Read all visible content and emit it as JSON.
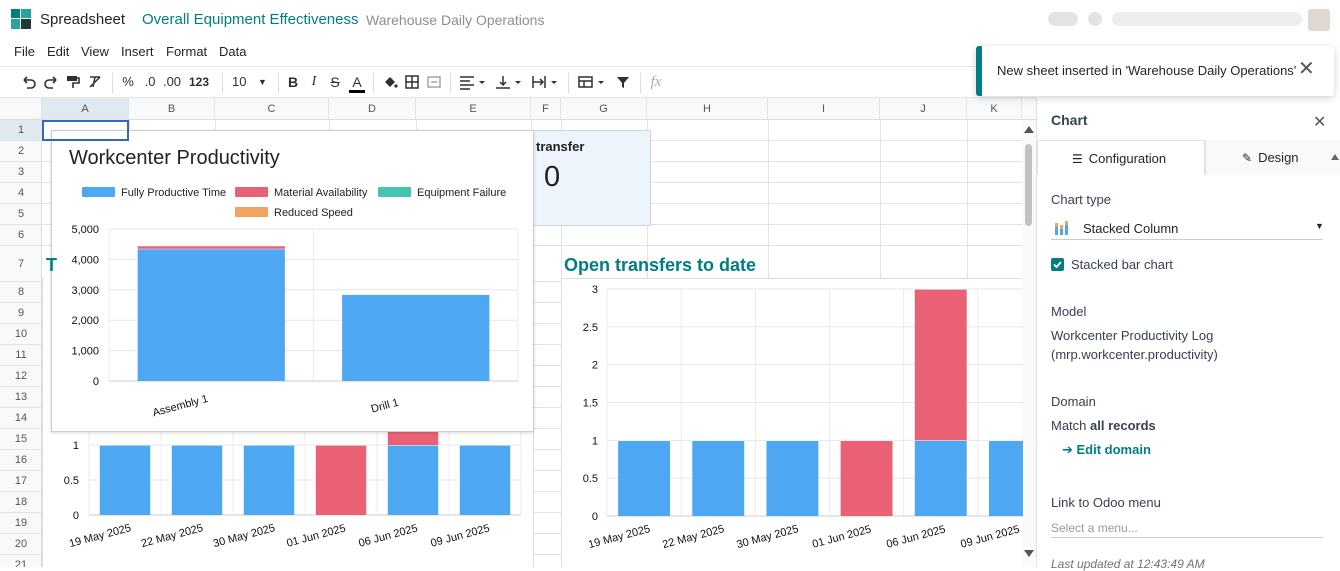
{
  "header": {
    "app_name": "Spreadsheet",
    "doc_name": "Overall Equipment Effectiveness",
    "doc_folder": "Warehouse Daily Operations",
    "brand_color": "#017e84"
  },
  "menu": [
    "File",
    "Edit",
    "View",
    "Insert",
    "Format",
    "Data"
  ],
  "toolbar": {
    "percent": "%",
    "decimals_dec": ".0",
    "decimals_inc": ".00",
    "number_format": "123",
    "font_size": "10",
    "bold": "B",
    "italic": "I",
    "strike": "S",
    "text_color": "A",
    "formula_icon": "fx"
  },
  "grid": {
    "columns": [
      "A",
      "B",
      "C",
      "D",
      "E",
      "F",
      "G",
      "H",
      "I",
      "J",
      "K"
    ],
    "rows": [
      "1",
      "2",
      "3",
      "4",
      "5",
      "6",
      "7",
      "8",
      "9",
      "10",
      "11",
      "12",
      "13",
      "14",
      "15",
      "16",
      "17",
      "18",
      "19",
      "20",
      "21"
    ],
    "selected_cell": "A1",
    "partial_cell_text": "T"
  },
  "scorecard": {
    "title": "transfer",
    "value": "0"
  },
  "charts": {
    "workcenter": {
      "title": "Workcenter Productivity",
      "legend": [
        "Fully Productive Time",
        "Material Availability",
        "Equipment Failure",
        "Reduced Speed"
      ]
    },
    "open_transfers": {
      "title": "Open transfers to date"
    }
  },
  "chart_data": [
    {
      "type": "bar",
      "stacked": true,
      "title": "Workcenter Productivity",
      "categories": [
        "Assembly 1",
        "Drill 1"
      ],
      "series": [
        {
          "name": "Fully Productive Time",
          "color": "#4ea7f2",
          "values": [
            4350,
            2850
          ]
        },
        {
          "name": "Material Availability",
          "color": "#ea6175",
          "values": [
            100,
            0
          ]
        },
        {
          "name": "Equipment Failure",
          "color": "#43c5b1",
          "values": [
            0,
            0
          ]
        },
        {
          "name": "Reduced Speed",
          "color": "#f4a261",
          "values": [
            0,
            0
          ]
        }
      ],
      "yticks": [
        "0",
        "1,000",
        "2,000",
        "3,000",
        "4,000",
        "5,000"
      ],
      "ylim": [
        0,
        5000
      ],
      "legend_position": "top",
      "grid": true
    },
    {
      "type": "bar",
      "stacked": true,
      "title": "",
      "categories": [
        "19 May 2025",
        "22 May 2025",
        "30 May 2025",
        "01 Jun 2025",
        "06 Jun 2025",
        "09 Jun 2025"
      ],
      "series": [
        {
          "color": "#4ea7f2",
          "values": [
            1,
            1,
            1,
            0,
            1,
            1
          ]
        },
        {
          "color": "#ea6175",
          "values": [
            0,
            0,
            0,
            1,
            2,
            0
          ]
        }
      ],
      "yticks": [
        "0",
        "0.5",
        "1"
      ],
      "ylim": [
        0,
        3
      ],
      "grid": true
    },
    {
      "type": "bar",
      "stacked": true,
      "title": "Open transfers to date",
      "categories": [
        "19 May 2025",
        "22 May 2025",
        "30 May 2025",
        "01 Jun 2025",
        "06 Jun 2025",
        "09 Jun 2025"
      ],
      "series": [
        {
          "color": "#4ea7f2",
          "values": [
            1,
            1,
            1,
            0,
            1,
            1
          ]
        },
        {
          "color": "#ea6175",
          "values": [
            0,
            0,
            0,
            1,
            2,
            0
          ]
        }
      ],
      "yticks": [
        "0",
        "0.5",
        "1",
        "1.5",
        "2",
        "2.5",
        "3"
      ],
      "ylim": [
        0,
        3
      ],
      "grid": true
    }
  ],
  "panel": {
    "title": "Chart",
    "tabs": [
      "Configuration",
      "Design"
    ],
    "chart_type_label": "Chart type",
    "chart_type_value": "Stacked Column",
    "stacked_label": "Stacked bar chart",
    "stacked_checked": true,
    "model_label": "Model",
    "model_value": "Workcenter Productivity Log",
    "model_technical": "(mrp.workcenter.productivity)",
    "domain_label": "Domain",
    "domain_prefix": "Match ",
    "domain_value": "all records",
    "edit_domain": "Edit domain",
    "odoo_menu_label": "Link to Odoo menu",
    "odoo_menu_placeholder": "Select a menu...",
    "last_updated": "Last updated at 12:43:49 AM"
  },
  "toast": {
    "message": "New sheet inserted in 'Warehouse Daily Operations'"
  }
}
